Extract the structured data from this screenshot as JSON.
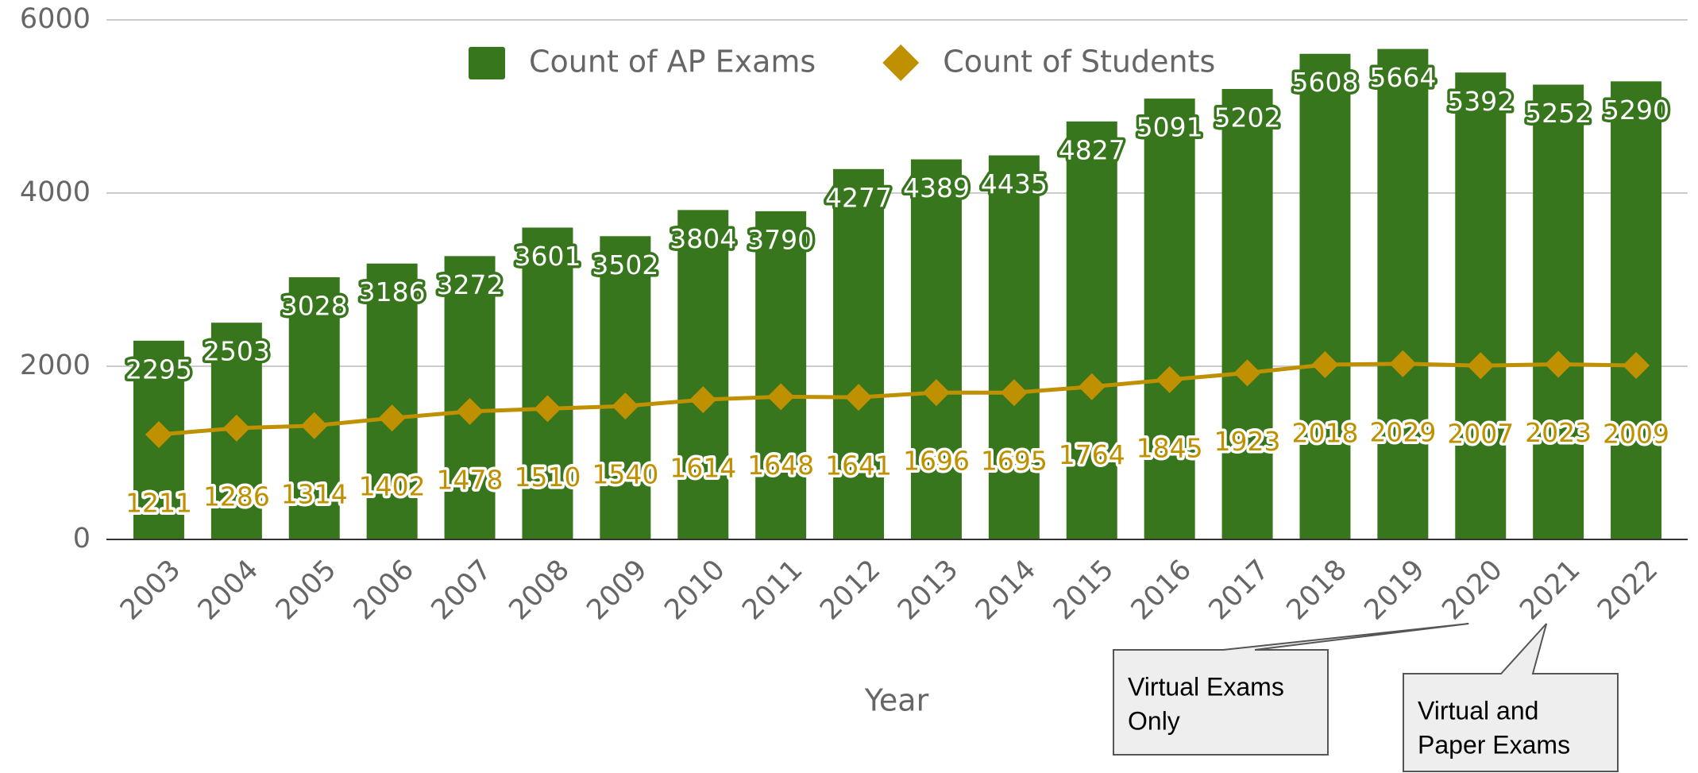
{
  "chart_data": {
    "type": "bar",
    "categories": [
      "2003",
      "2004",
      "2005",
      "2006",
      "2007",
      "2008",
      "2009",
      "2010",
      "2011",
      "2012",
      "2013",
      "2014",
      "2015",
      "2016",
      "2017",
      "2018",
      "2019",
      "2020",
      "2021",
      "2022"
    ],
    "series": [
      {
        "name": "Count of AP Exams",
        "type": "bar",
        "color": "#38761d",
        "values": [
          2295,
          2503,
          3028,
          3186,
          3272,
          3601,
          3502,
          3804,
          3790,
          4277,
          4389,
          4435,
          4827,
          5091,
          5202,
          5608,
          5664,
          5392,
          5252,
          5290
        ]
      },
      {
        "name": "Count of Students",
        "type": "line",
        "color": "#bf9000",
        "values": [
          1211,
          1286,
          1314,
          1402,
          1478,
          1510,
          1540,
          1614,
          1648,
          1641,
          1696,
          1695,
          1764,
          1845,
          1923,
          2018,
          2029,
          2007,
          2023,
          2009
        ]
      }
    ],
    "x_label": "Year",
    "ylim": [
      0,
      6000
    ],
    "yticks": [
      0,
      2000,
      4000,
      6000
    ],
    "grid": true,
    "legend": "top",
    "annotations": [
      {
        "lines": [
          "Virtual Exams",
          "Only"
        ],
        "category": 17
      },
      {
        "lines": [
          "Virtual and",
          "Paper Exams"
        ],
        "category": 18
      }
    ]
  }
}
